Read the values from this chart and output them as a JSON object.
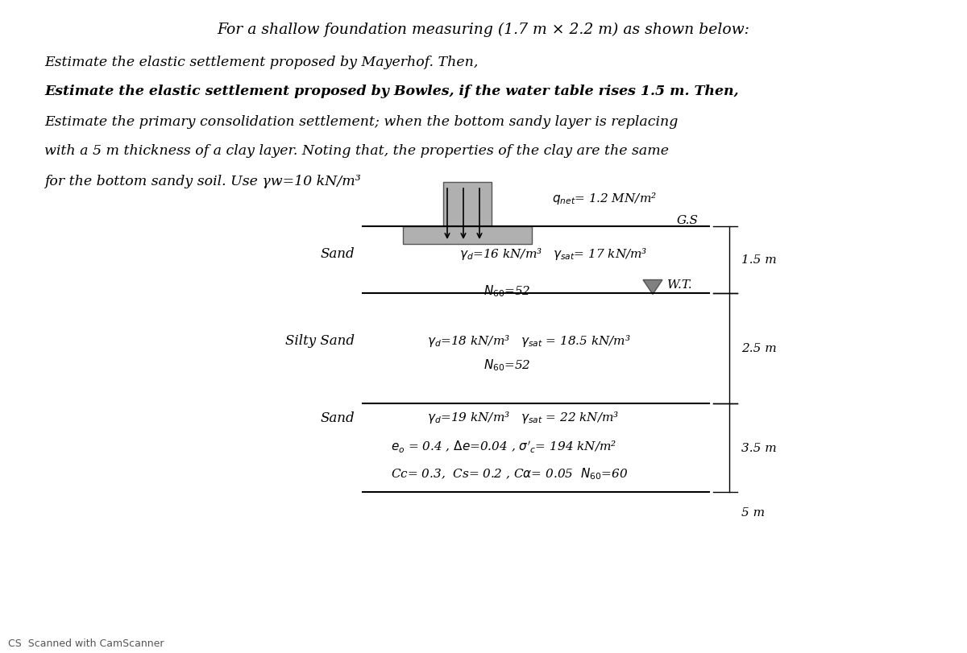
{
  "title_line": "For a shallow foundation measuring (1.7 m × 2.2 m) as shown below:",
  "problem_lines": [
    "Estimate the elastic settlement proposed by Mayerhof. Then,",
    "Estimate the elastic settlement proposed by Bowles, if the water table rises 1.5 m. Then,",
    "Estimate the primary consolidation settlement; when the bottom sandy layer is replacing",
    "with a 5 m thickness of a clay layer. Noting that, the properties of the clay are the same",
    "for the bottom sandy soil. Use γw=10 kN/m³"
  ],
  "qnet_label": "q",
  "qnet_sub": "net",
  "qnet_val": "= 1.2 MN/m²",
  "gs_label": "G.S",
  "layer1_name": "Sand",
  "layer1_props": "γd=16 kN/m³   γsat= 17 kN/m³",
  "layer1_N": "N₆₀=52",
  "layer1_depth": "1.5 m",
  "layer2_name": "Silty Sand",
  "layer2_props": "γd=18 kN/m³   γsat = 18.5 kN/m³",
  "layer2_N": "N₆₀=52",
  "layer2_depth": "2.5 m",
  "wt_label": "W.T.",
  "layer3_name": "Sand",
  "layer3_props": "γd=19 kN/m³   γsat = 22 kN/m³",
  "layer3_e0": "e₀ = 0.4 , Δe=0.04 , σ'ᶜ= 194 kN/m²",
  "layer3_Cc": "Cc= 0.3,  Cs= 0.2 , Cα= 0.05  N₆₀=60",
  "layer3_depth": "3.5 m",
  "layer4_depth": "5 m",
  "bg_color": "#f0f0f0",
  "foundation_color": "#a0a0a0",
  "layer_line_color": "#333333",
  "scanner_text": "CS  Scanned with CamScanner"
}
